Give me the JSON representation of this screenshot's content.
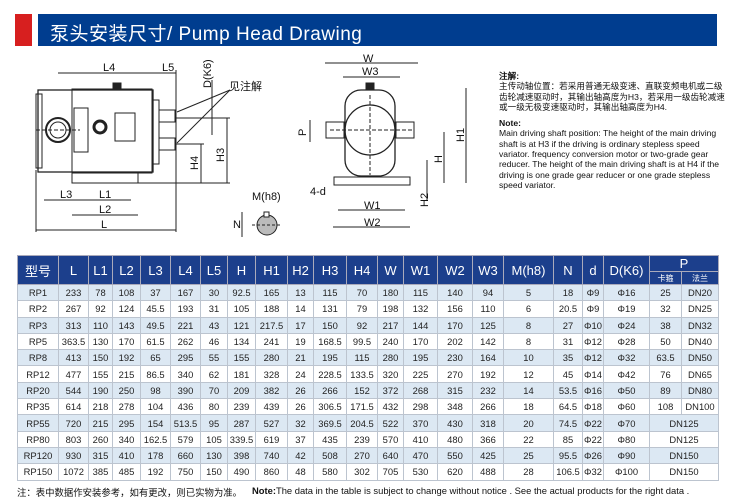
{
  "header": {
    "title": "泵头安装尺寸/ Pump Head Drawing",
    "accent_color": "#d71f1f",
    "bar_color": "#003d8f"
  },
  "drawing": {
    "labels": {
      "L": "L",
      "L1": "L1",
      "L2": "L2",
      "L3": "L3",
      "L4": "L4",
      "L5": "L5",
      "D": "D(K6)",
      "see_note": "见注解",
      "H3": "H3",
      "H4": "H4",
      "M": "M(h8)",
      "N": "N",
      "W": "W",
      "W1": "W1",
      "W2": "W2",
      "W3": "W3",
      "P": "P",
      "H": "H",
      "H1": "H1",
      "H2": "H2",
      "d": "4-d"
    }
  },
  "notes": {
    "cn_heading": "注解:",
    "cn_text": "主传动轴位置：若采用普通无级变速、直联变频电机或二级齿轮减速驱动时，其输出轴高度为H3，若采用一级齿轮减速或一级无极变速驱动时，其输出轴高度为H4.",
    "en_heading": "Note:",
    "en_text": "Main driving shaft position:   The height of the main driving shaft is at H3 if the driving is ordinary stepless speed variator.   frequency conversion motor or two-grade gear reducer. The height of the main driving shaft is at H4 if the driving is one grade gear reducer or one grade stepless speed variator."
  },
  "table": {
    "headers": [
      "型号",
      "L",
      "L1",
      "L2",
      "L3",
      "L4",
      "L5",
      "H",
      "H1",
      "H2",
      "H3",
      "H4",
      "W",
      "W1",
      "W2",
      "W3",
      "M(h8)",
      "N",
      "d",
      "D(K6)",
      "P"
    ],
    "p_subheaders": [
      "卡箍",
      "法兰"
    ],
    "rows": [
      [
        "RP1",
        "233",
        "78",
        "108",
        "37",
        "167",
        "30",
        "92.5",
        "165",
        "13",
        "115",
        "70",
        "180",
        "115",
        "140",
        "94",
        "5",
        "18",
        "Φ9",
        "Φ16",
        "25",
        "DN20"
      ],
      [
        "RP2",
        "267",
        "92",
        "124",
        "45.5",
        "193",
        "31",
        "105",
        "188",
        "14",
        "131",
        "79",
        "198",
        "132",
        "156",
        "110",
        "6",
        "20.5",
        "Φ9",
        "Φ19",
        "32",
        "DN25"
      ],
      [
        "RP3",
        "313",
        "110",
        "143",
        "49.5",
        "221",
        "43",
        "121",
        "217.5",
        "17",
        "150",
        "92",
        "217",
        "144",
        "170",
        "125",
        "8",
        "27",
        "Φ10",
        "Φ24",
        "38",
        "DN32"
      ],
      [
        "RP5",
        "363.5",
        "130",
        "170",
        "61.5",
        "262",
        "46",
        "134",
        "241",
        "19",
        "168.5",
        "99.5",
        "240",
        "170",
        "202",
        "142",
        "8",
        "31",
        "Φ12",
        "Φ28",
        "50",
        "DN40"
      ],
      [
        "RP8",
        "413",
        "150",
        "192",
        "65",
        "295",
        "55",
        "155",
        "280",
        "21",
        "195",
        "115",
        "280",
        "195",
        "230",
        "164",
        "10",
        "35",
        "Φ12",
        "Φ32",
        "63.5",
        "DN50"
      ],
      [
        "RP12",
        "477",
        "155",
        "215",
        "86.5",
        "340",
        "62",
        "181",
        "328",
        "24",
        "228.5",
        "133.5",
        "320",
        "225",
        "270",
        "192",
        "12",
        "45",
        "Φ14",
        "Φ42",
        "76",
        "DN65"
      ],
      [
        "RP20",
        "544",
        "190",
        "250",
        "98",
        "390",
        "70",
        "209",
        "382",
        "26",
        "266",
        "152",
        "372",
        "268",
        "315",
        "232",
        "14",
        "53.5",
        "Φ16",
        "Φ50",
        "89",
        "DN80"
      ],
      [
        "RP35",
        "614",
        "218",
        "278",
        "104",
        "436",
        "80",
        "239",
        "439",
        "26",
        "306.5",
        "171.5",
        "432",
        "298",
        "348",
        "266",
        "18",
        "64.5",
        "Φ18",
        "Φ60",
        "108",
        "DN100"
      ],
      [
        "RP55",
        "720",
        "215",
        "295",
        "154",
        "513.5",
        "95",
        "287",
        "527",
        "32",
        "369.5",
        "204.5",
        "522",
        "370",
        "430",
        "318",
        "20",
        "74.5",
        "Φ22",
        "Φ70",
        "DN125"
      ],
      [
        "RP80",
        "803",
        "260",
        "340",
        "162.5",
        "579",
        "105",
        "339.5",
        "619",
        "37",
        "435",
        "239",
        "570",
        "410",
        "480",
        "366",
        "22",
        "85",
        "Φ22",
        "Φ80",
        "DN125"
      ],
      [
        "RP120",
        "930",
        "315",
        "410",
        "178",
        "660",
        "130",
        "398",
        "740",
        "42",
        "508",
        "270",
        "640",
        "470",
        "550",
        "425",
        "25",
        "95.5",
        "Φ26",
        "Φ90",
        "DN150"
      ],
      [
        "RP150",
        "1072",
        "385",
        "485",
        "192",
        "750",
        "150",
        "490",
        "860",
        "48",
        "580",
        "302",
        "705",
        "530",
        "620",
        "488",
        "28",
        "106.5",
        "Φ32",
        "Φ100",
        "DN150"
      ]
    ]
  },
  "footer": {
    "cn": "注：表中数据作安装参考，如有更改，则已实物为准。",
    "en_label": "Note:",
    "en": "The data in the table is subject to change without notice . See the actual products for the right data ."
  }
}
